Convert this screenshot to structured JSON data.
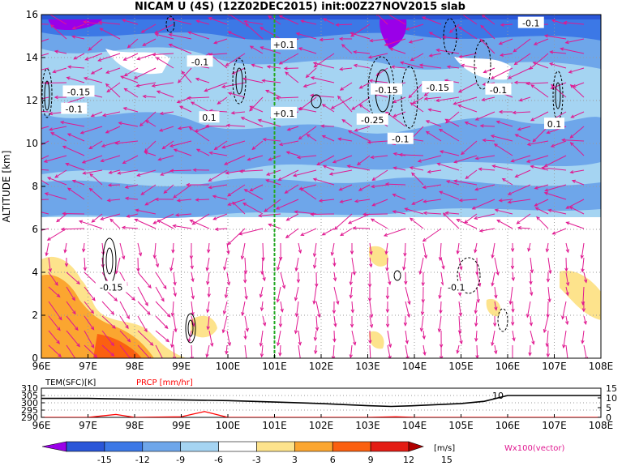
{
  "chart_data": [
    {
      "type": "heatmap",
      "title": "NICAM U (4S) (12Z02DEC2015) init:00Z27NOV2015 slab",
      "xlabel": "",
      "ylabel": "ALTITUDE [km]",
      "x_ticks": [
        "96E",
        "97E",
        "98E",
        "99E",
        "100E",
        "101E",
        "102E",
        "103E",
        "104E",
        "105E",
        "106E",
        "107E",
        "108E"
      ],
      "x_range": [
        96,
        108
      ],
      "y_ticks": [
        0,
        2,
        4,
        6,
        8,
        10,
        12,
        14,
        16
      ],
      "ylim": [
        0,
        16
      ],
      "marker_longitude": 101,
      "contour_labels": [
        {
          "text": "-0.1",
          "lon": 106.5,
          "alt": 15.6
        },
        {
          "text": "+0.1",
          "lon": 101.2,
          "alt": 14.6
        },
        {
          "text": "-0.1",
          "lon": 99.4,
          "alt": 13.8
        },
        {
          "text": "-0.15",
          "lon": 96.8,
          "alt": 12.4
        },
        {
          "text": "-0.1",
          "lon": 96.7,
          "alt": 11.6
        },
        {
          "text": "0.1",
          "lon": 99.6,
          "alt": 11.2
        },
        {
          "text": "+0.1",
          "lon": 101.2,
          "alt": 11.4
        },
        {
          "text": "-0.15",
          "lon": 103.4,
          "alt": 12.5
        },
        {
          "text": "-0.15",
          "lon": 104.5,
          "alt": 12.6
        },
        {
          "text": "-0.1",
          "lon": 105.8,
          "alt": 12.5
        },
        {
          "text": "-0.25",
          "lon": 103.1,
          "alt": 11.1
        },
        {
          "text": "-0.1",
          "lon": 103.7,
          "alt": 10.2
        },
        {
          "text": "0.1",
          "lon": 107.0,
          "alt": 10.9
        },
        {
          "text": "-0.15",
          "lon": 97.5,
          "alt": 3.3
        },
        {
          "text": "-0.1",
          "lon": 104.9,
          "alt": 3.3
        }
      ]
    },
    {
      "type": "line",
      "title": "",
      "series": [
        {
          "name": "TEM(SFC)[K]",
          "color": "#000000",
          "x": [
            96,
            97,
            98,
            99,
            100,
            101,
            102,
            103,
            103.5,
            104,
            105,
            105.5,
            106,
            107,
            108
          ],
          "values": [
            303,
            303,
            302.5,
            302,
            301.5,
            300.5,
            299.5,
            298,
            297.5,
            298,
            299.5,
            301,
            305,
            305,
            305
          ]
        },
        {
          "name": "PRCP [mm/hr]",
          "color": "#ff0000",
          "x": [
            96,
            97,
            97.6,
            98,
            99,
            99.5,
            100,
            101,
            102,
            103,
            103.6,
            104,
            105,
            106,
            107,
            108
          ],
          "values": [
            0,
            0,
            1.5,
            0,
            0.3,
            3,
            0,
            0,
            0,
            0,
            0.3,
            0,
            0,
            0,
            0,
            0
          ]
        }
      ],
      "left_axis_ticks": [
        "310",
        "305",
        "300",
        "295",
        "290"
      ],
      "right_axis_ticks": [
        "15",
        "10",
        "5",
        "0"
      ],
      "annotation": "10"
    }
  ],
  "colorbar": {
    "labels": [
      "-15",
      "-12",
      "-9",
      "-6",
      "-3",
      "3",
      "6",
      "9",
      "12",
      "15"
    ],
    "colors": [
      "#9a00e8",
      "#2a56d8",
      "#3c78e6",
      "#6ea6ea",
      "#a5d4f2",
      "#ffffff",
      "#fde38c",
      "#fba630",
      "#fb6010",
      "#e41c14",
      "#b00000"
    ],
    "unit": "[m/s]",
    "vector_label": "Wx100(vector)"
  }
}
